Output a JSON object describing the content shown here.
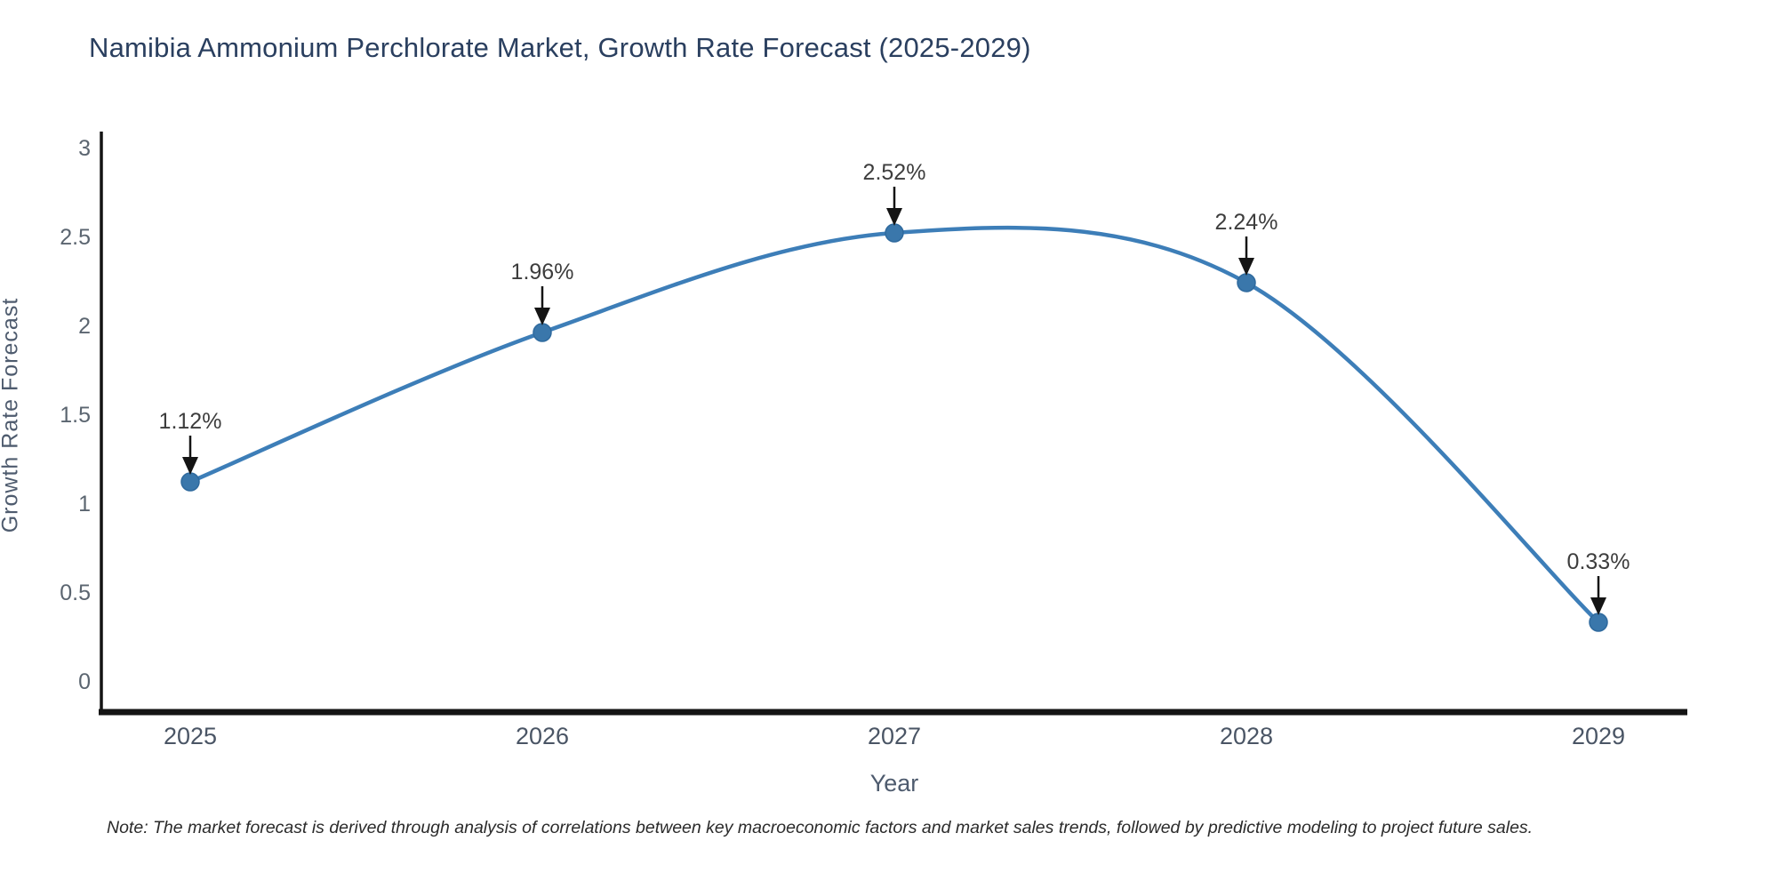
{
  "page": {
    "background": "#ffffff"
  },
  "chart_data": {
    "type": "line",
    "title": "Namibia Ammonium Perchlorate Market, Growth Rate Forecast (2025-2029)",
    "xlabel": "Year",
    "ylabel": "Growth Rate Forecast",
    "categories": [
      "2025",
      "2026",
      "2027",
      "2028",
      "2029"
    ],
    "series": [
      {
        "name": "Growth Rate Forecast",
        "values": [
          1.12,
          1.96,
          2.52,
          2.24,
          0.33
        ],
        "point_labels": [
          "1.12%",
          "1.96%",
          "2.52%",
          "2.24%",
          "0.33%"
        ]
      }
    ],
    "y_ticks": [
      0,
      0.5,
      1,
      1.5,
      2,
      2.5,
      3
    ],
    "ylim": [
      -0.19,
      3.09
    ],
    "line_shape": "spline",
    "markers": true,
    "annotations_arrows": true,
    "grid": false,
    "legend_position": "none",
    "colors": {
      "line": "#3d7eb8",
      "marker": "#3a77ab",
      "marker_edge": "#2f6a9e",
      "axis_line": "#141414",
      "arrow": "#141414",
      "title_text": "#2a3f5f",
      "axis_title_text": "#4e5b6e",
      "tick_text": "#5b6570",
      "annotation_text": "#3d3d3d"
    },
    "note": "Note: The market forecast is derived through analysis of correlations between key macroeconomic factors and market sales trends, followed by predictive modeling to project future sales."
  }
}
